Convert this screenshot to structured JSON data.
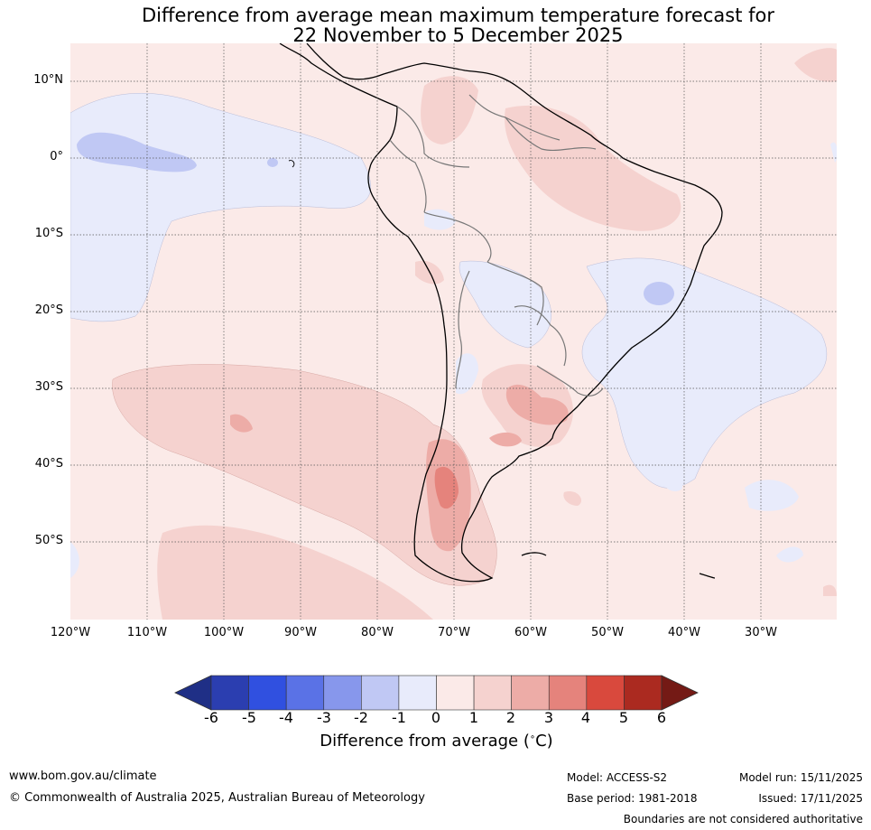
{
  "title": {
    "line1": "Difference from average mean maximum temperature forecast for",
    "line2": "22 November to 5 December 2025"
  },
  "map": {
    "lat_labels": [
      "10°N",
      "0°",
      "10°S",
      "20°S",
      "30°S",
      "40°S",
      "50°S"
    ],
    "lon_labels": [
      "120°W",
      "110°W",
      "100°W",
      "90°W",
      "80°W",
      "70°W",
      "60°W",
      "50°W",
      "40°W",
      "30°W"
    ]
  },
  "colorbar": {
    "ticks": [
      "-6",
      "-5",
      "-4",
      "-3",
      "-2",
      "-1",
      "0",
      "1",
      "2",
      "3",
      "4",
      "5",
      "6"
    ],
    "colors": [
      "#1f2f86",
      "#2b3eb0",
      "#3050e0",
      "#5a72e6",
      "#8797ec",
      "#c0c8f4",
      "#e8ebfb",
      "#fbeae8",
      "#f5d2cf",
      "#edaca7",
      "#e5837c",
      "#d9493d",
      "#ab2a20",
      "#741a15"
    ],
    "label": "Difference from average (°C)",
    "label_main": "Difference from average (",
    "label_unit": "C)"
  },
  "footer": {
    "url": "www.bom.gov.au/climate",
    "copyright": "© Commonwealth of Australia 2025, Australian Bureau of Meteorology",
    "model": "Model: ACCESS-S2",
    "base_period": "Base period: 1981-2018",
    "model_run": "Model run: 15/11/2025",
    "issued": "Issued: 17/11/2025",
    "disclaimer": "Boundaries are not considered authoritative"
  }
}
